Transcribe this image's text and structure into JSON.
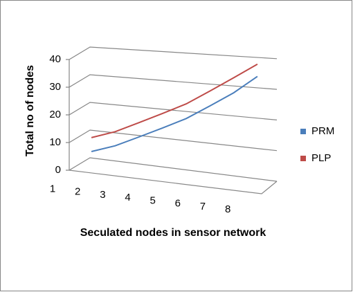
{
  "chart_data": {
    "type": "line3d",
    "x_label": "Seculated nodes in sensor network",
    "y_label": "Total no of nodes",
    "categories": [
      "1",
      "2",
      "3",
      "4",
      "5",
      "6",
      "7",
      "8"
    ],
    "series": [
      {
        "name": "PRM",
        "color": "#4a7ebb",
        "values": [
          5,
          8,
          12,
          16,
          20,
          25,
          30,
          36
        ]
      },
      {
        "name": "PLP",
        "color": "#be4b48",
        "values": [
          10,
          13,
          17,
          21,
          25,
          30,
          35,
          40
        ]
      }
    ],
    "ylim": [
      0,
      40
    ],
    "yticks": [
      0,
      10,
      20,
      30,
      40
    ],
    "grid": true,
    "legend": "right"
  }
}
